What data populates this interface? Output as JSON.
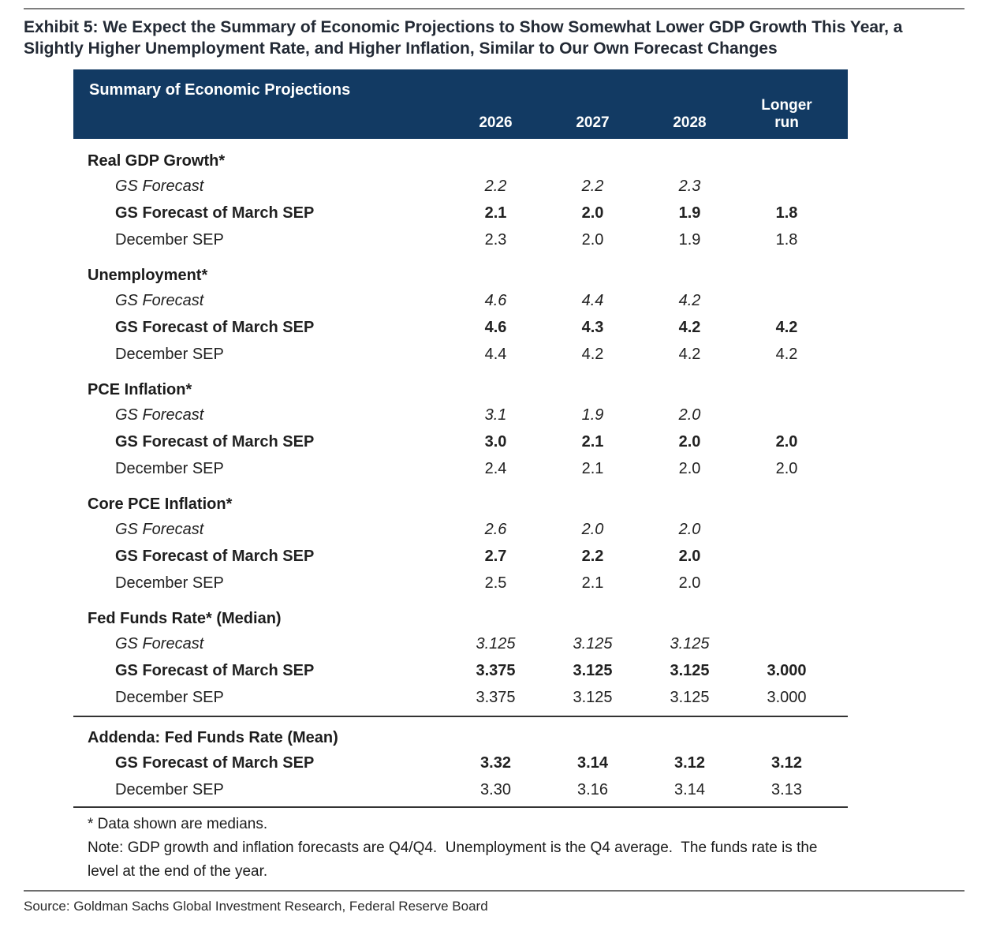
{
  "exhibit_title": "Exhibit 5: We Expect the Summary of Economic Projections to Show Somewhat Lower GDP Growth This Year, a Slightly Higher Unemployment Rate, and Higher Inflation, Similar to Our Own Forecast Changes",
  "colors": {
    "header_bg": "#123A63",
    "header_text": "#ffffff",
    "body_text": "#212121",
    "rule_gray": "#7f7f7f"
  },
  "table": {
    "header": {
      "title": "Summary of Economic Projections",
      "columns": [
        "2026",
        "2027",
        "2028",
        "Longer run"
      ]
    },
    "sections": [
      {
        "label": "Real GDP Growth*",
        "rows": [
          {
            "label": "GS Forecast",
            "style": "italic",
            "values": [
              "2.2",
              "2.2",
              "2.3",
              ""
            ]
          },
          {
            "label": "GS Forecast of March SEP",
            "style": "bold",
            "values": [
              "2.1",
              "2.0",
              "1.9",
              "1.8"
            ]
          },
          {
            "label": "December SEP",
            "style": "regular",
            "values": [
              "2.3",
              "2.0",
              "1.9",
              "1.8"
            ]
          }
        ]
      },
      {
        "label": "Unemployment*",
        "rows": [
          {
            "label": "GS Forecast",
            "style": "italic",
            "values": [
              "4.6",
              "4.4",
              "4.2",
              ""
            ]
          },
          {
            "label": "GS Forecast of March SEP",
            "style": "bold",
            "values": [
              "4.6",
              "4.3",
              "4.2",
              "4.2"
            ]
          },
          {
            "label": "December SEP",
            "style": "regular",
            "values": [
              "4.4",
              "4.2",
              "4.2",
              "4.2"
            ]
          }
        ]
      },
      {
        "label": "PCE Inflation*",
        "rows": [
          {
            "label": "GS Forecast",
            "style": "italic",
            "values": [
              "3.1",
              "1.9",
              "2.0",
              ""
            ]
          },
          {
            "label": "GS Forecast of March SEP",
            "style": "bold",
            "values": [
              "3.0",
              "2.1",
              "2.0",
              "2.0"
            ]
          },
          {
            "label": "December SEP",
            "style": "regular",
            "values": [
              "2.4",
              "2.1",
              "2.0",
              "2.0"
            ]
          }
        ]
      },
      {
        "label": "Core PCE Inflation*",
        "rows": [
          {
            "label": "GS Forecast",
            "style": "italic",
            "values": [
              "2.6",
              "2.0",
              "2.0",
              ""
            ]
          },
          {
            "label": "GS Forecast of March SEP",
            "style": "bold",
            "values": [
              "2.7",
              "2.2",
              "2.0",
              ""
            ]
          },
          {
            "label": "December SEP",
            "style": "regular",
            "values": [
              "2.5",
              "2.1",
              "2.0",
              ""
            ]
          }
        ]
      },
      {
        "label": "Fed Funds Rate* (Median)",
        "rows": [
          {
            "label": "GS Forecast",
            "style": "italic",
            "values": [
              "3.125",
              "3.125",
              "3.125",
              ""
            ]
          },
          {
            "label": "GS Forecast of March SEP",
            "style": "bold",
            "values": [
              "3.375",
              "3.125",
              "3.125",
              "3.000"
            ]
          },
          {
            "label": "December SEP",
            "style": "regular",
            "values": [
              "3.375",
              "3.125",
              "3.125",
              "3.000"
            ]
          }
        ]
      },
      {
        "label": "Addenda: Fed Funds Rate (Mean)",
        "divider_above": true,
        "rows": [
          {
            "label": "GS Forecast of March SEP",
            "style": "bold",
            "values": [
              "3.32",
              "3.14",
              "3.12",
              "3.12"
            ]
          },
          {
            "label": "December SEP",
            "style": "regular",
            "values": [
              "3.30",
              "3.16",
              "3.14",
              "3.13"
            ]
          }
        ]
      }
    ],
    "footnotes": {
      "medians": "* Data shown are medians.",
      "note": "Note: GDP growth and inflation forecasts are Q4/Q4.  Unemployment is the Q4 average.  The funds rate is the level at the end of the year."
    }
  },
  "source": "Source: Goldman Sachs Global Investment Research, Federal Reserve Board"
}
